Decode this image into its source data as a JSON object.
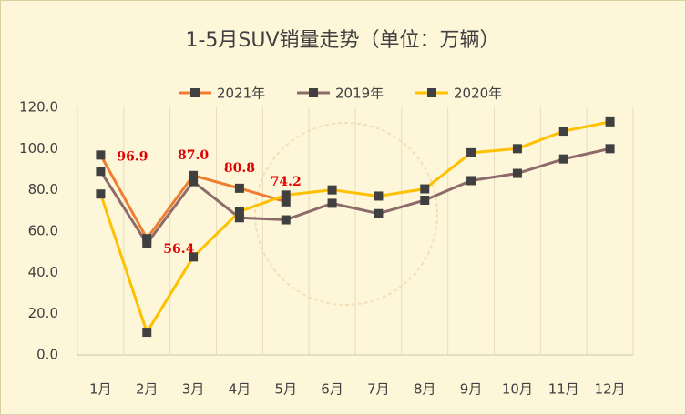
{
  "chart_data": {
    "type": "line",
    "title": "1-5月SUV销量走势（单位：万辆）",
    "categories": [
      "1月",
      "2月",
      "3月",
      "4月",
      "5月",
      "6月",
      "7月",
      "8月",
      "9月",
      "10月",
      "11月",
      "12月"
    ],
    "series": [
      {
        "name": "2021年",
        "color": "#ed7d31",
        "values": [
          96.9,
          56.4,
          87.0,
          80.8,
          74.2,
          null,
          null,
          null,
          null,
          null,
          null,
          null
        ],
        "value_labels": [
          "96.9",
          "56.4",
          "87.0",
          "80.8",
          "74.2",
          null,
          null,
          null,
          null,
          null,
          null,
          null
        ],
        "label_color": "#e00000"
      },
      {
        "name": "2019年",
        "color": "#8e6b6b",
        "values": [
          89,
          54,
          84,
          66.5,
          65.5,
          73.5,
          68.5,
          75,
          84.5,
          88,
          95,
          100
        ]
      },
      {
        "name": "2020年",
        "color": "#ffc000",
        "values": [
          78,
          11,
          47.5,
          69.5,
          77.5,
          80,
          77,
          80.5,
          98,
          100,
          108.5,
          113
        ]
      }
    ],
    "marker_color": "#404040",
    "ylim": [
      0,
      120
    ],
    "yticks": [
      {
        "value": 0,
        "label": "0.0"
      },
      {
        "value": 20,
        "label": "20.0"
      },
      {
        "value": 40,
        "label": "40.0"
      },
      {
        "value": 60,
        "label": "60.0"
      },
      {
        "value": 80,
        "label": "80.0"
      },
      {
        "value": 100,
        "label": "100.0"
      },
      {
        "value": 120,
        "label": "120.0"
      }
    ],
    "grid": true,
    "legend": "top"
  }
}
